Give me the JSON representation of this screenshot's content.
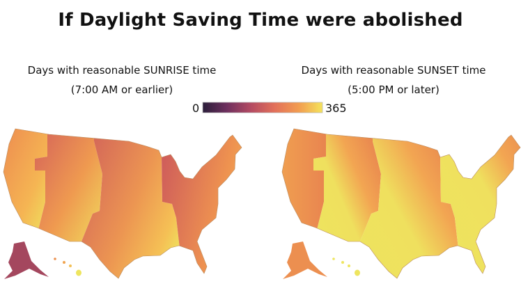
{
  "title": "If Daylight Saving Time were abolished",
  "panels": [
    {
      "heading": "Days with reasonable SUNRISE time",
      "subheading": "(7:00 AM or earlier)"
    },
    {
      "heading": "Days with reasonable SUNSET time",
      "subheading": "(5:00 PM or later)"
    }
  ],
  "legend": {
    "min_label": "0",
    "max_label": "365",
    "color_stops": [
      "#2a1e3a",
      "#6e2f5e",
      "#b34a62",
      "#e2705a",
      "#f29c50",
      "#f4e35c"
    ]
  },
  "colors": {
    "dark": "#c95a5a",
    "orange": "#ee9050",
    "light_orange": "#f5b553",
    "yellow": "#eee55f",
    "alaska_sunrise": "#a4475e"
  }
}
